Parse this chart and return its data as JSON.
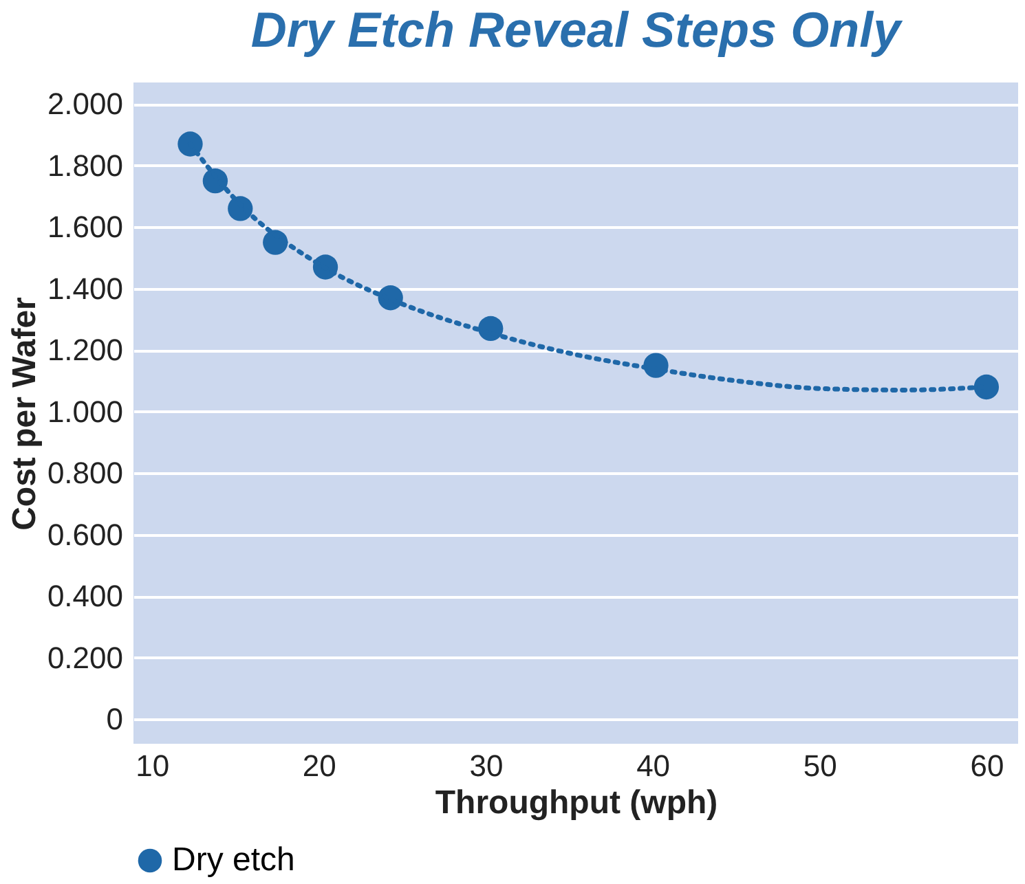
{
  "chart_data": {
    "type": "scatter",
    "title": "Dry Etch Reveal Steps Only",
    "xlabel": "Throughput (wph)",
    "ylabel": "Cost per Wafer",
    "series": [
      {
        "name": "Dry etch",
        "color": "#1f68a8",
        "x": [
          12.3,
          13.8,
          15.3,
          17.4,
          20.4,
          24.3,
          30.3,
          40.2,
          60
        ],
        "values": [
          1.87,
          1.75,
          1.66,
          1.55,
          1.47,
          1.37,
          1.27,
          1.15,
          1.08
        ]
      },
      {
        "type": "line",
        "line_style": "dotted",
        "marker": "none",
        "color": "#1f68a8",
        "x": [
          12.3,
          15,
          20,
          25,
          30,
          35,
          40,
          45,
          50,
          55,
          60
        ],
        "values": [
          1.87,
          1.69,
          1.48,
          1.35,
          1.26,
          1.19,
          1.14,
          1.1,
          1.075,
          1.07,
          1.08
        ]
      }
    ],
    "xlim": [
      8.9,
      61.9
    ],
    "ylim": [
      -0.08,
      2.07
    ],
    "xticks": [
      10,
      20,
      30,
      40,
      50,
      60
    ],
    "yticks": [
      {
        "value": 0,
        "label": "0"
      },
      {
        "value": 0.2,
        "label": "0.200"
      },
      {
        "value": 0.4,
        "label": "0.400"
      },
      {
        "value": 0.6,
        "label": "0.600"
      },
      {
        "value": 0.8,
        "label": "0.800"
      },
      {
        "value": 1.0,
        "label": "1.000"
      },
      {
        "value": 1.2,
        "label": "1.200"
      },
      {
        "value": 1.4,
        "label": "1.400"
      },
      {
        "value": 1.6,
        "label": "1.600"
      },
      {
        "value": 1.8,
        "label": "1.800"
      },
      {
        "value": 2.0,
        "label": "2.000"
      }
    ],
    "grid": "y",
    "legend": "bottom",
    "marker": "circle"
  }
}
